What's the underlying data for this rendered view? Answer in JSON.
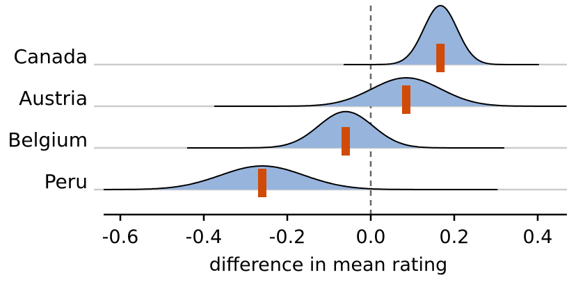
{
  "chart_data": {
    "type": "ridgeline",
    "xlabel": "difference in mean rating",
    "ylabel": "",
    "xlim": [
      -0.64,
      0.47
    ],
    "x_ticks": [
      "-0.6",
      "-0.4",
      "-0.2",
      "0.0",
      "0.2",
      "0.4"
    ],
    "x_tick_values": [
      -0.6,
      -0.4,
      -0.2,
      0.0,
      0.2,
      0.4
    ],
    "reference_line": {
      "x": 0.0,
      "style": "dashed"
    },
    "fill_color": "#97b4dd",
    "marker_color": "#d04a08",
    "series": [
      {
        "name": "Canada",
        "mean": 0.167,
        "sd": 0.04,
        "range": [
          -0.065,
          0.405
        ]
      },
      {
        "name": "Austria",
        "mean": 0.085,
        "sd": 0.083,
        "range": [
          -0.375,
          0.47
        ]
      },
      {
        "name": "Belgium",
        "mean": -0.06,
        "sd": 0.065,
        "range": [
          -0.44,
          0.32
        ]
      },
      {
        "name": "Peru",
        "mean": -0.26,
        "sd": 0.1,
        "range": [
          -0.64,
          0.305
        ]
      }
    ]
  }
}
